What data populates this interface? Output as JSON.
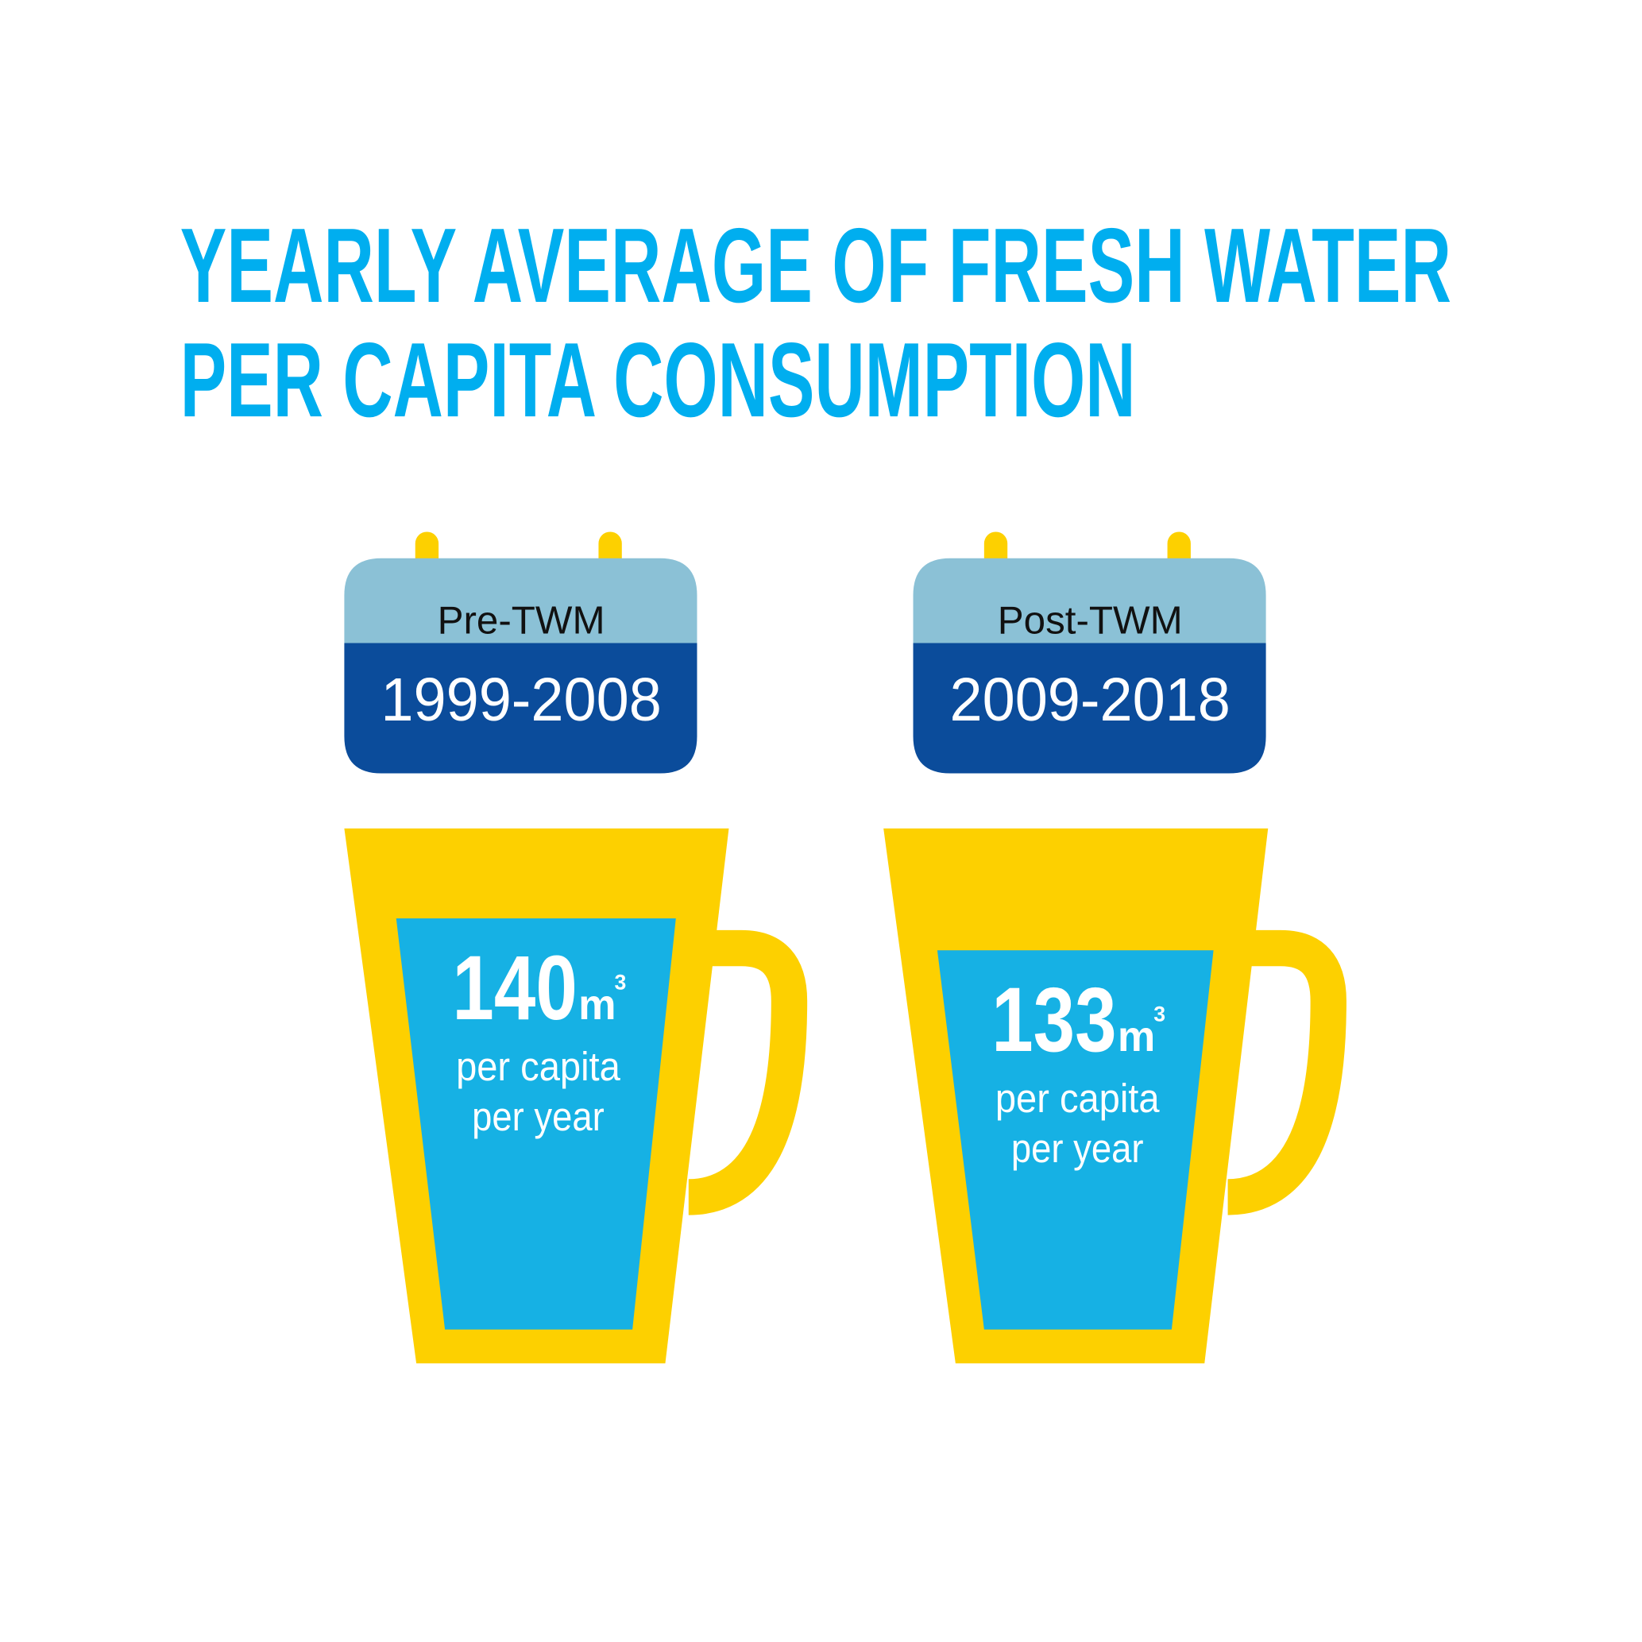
{
  "title": [
    "YEARLY AVERAGE OF FRESH WATER",
    "PER CAPITA CONSUMPTION"
  ],
  "panels": [
    {
      "label": "Pre-TWM",
      "period": "1999-2008",
      "value": 140,
      "unit": "m",
      "unit_power": 3,
      "caption": [
        "per capita",
        "per year"
      ]
    },
    {
      "label": "Post-TWM",
      "period": "2009-2018",
      "value": 133,
      "unit": "m",
      "unit_power": 3,
      "caption": [
        "per capita",
        "per year"
      ]
    }
  ]
}
